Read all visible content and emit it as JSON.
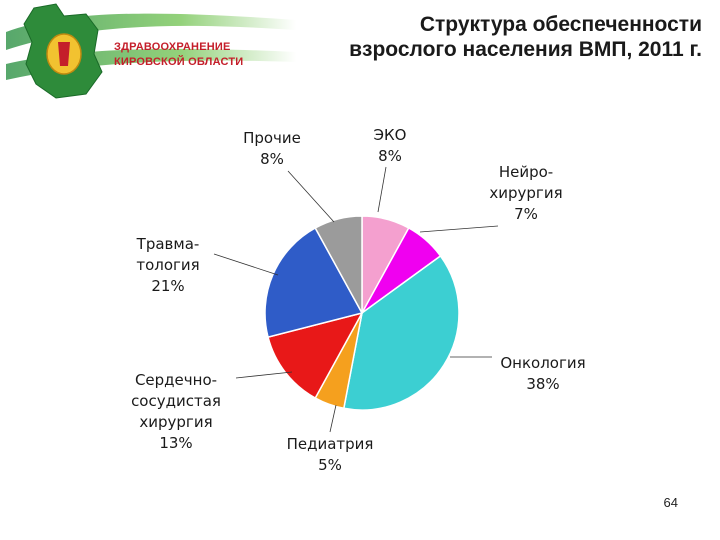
{
  "header": {
    "title_line1": "Структура обеспеченности",
    "title_line2": "взрослого населения ВМП, 2011 г.",
    "logo_line1": "ЗДРАВООХРАНЕНИЕ",
    "logo_line2": "КИРОВСКОЙ ОБЛАСТИ"
  },
  "page_number": "64",
  "chart_data": {
    "type": "pie",
    "title": "",
    "slices": [
      {
        "name": "ЭКО",
        "value": 8,
        "label": "8%",
        "color": "#f4a0cf"
      },
      {
        "name": "Нейро-хирургия",
        "value": 7,
        "label": "7%",
        "color": "#f000f0"
      },
      {
        "name": "Онкология",
        "value": 38,
        "label": "38%",
        "color": "#3ccfd2"
      },
      {
        "name": "Педиатрия",
        "value": 5,
        "label": "5%",
        "color": "#f5a01e"
      },
      {
        "name": "Сердечно-сосудистая хирургия",
        "value": 13,
        "label": "13%",
        "color": "#e81818"
      },
      {
        "name": "Травма-тология",
        "value": 21,
        "label": "21%",
        "color": "#2f5cc8"
      },
      {
        "name": "Прочие",
        "value": 8,
        "label": "8%",
        "color": "#9b9b9b"
      }
    ],
    "label_lines": [
      [
        "ЭКО",
        "8%"
      ],
      [
        "Нейро-",
        "хирургия",
        "7%"
      ],
      [
        "Онкология",
        "38%"
      ],
      [
        "Педиатрия",
        "5%"
      ],
      [
        "Сердечно-",
        "сосудистая",
        "хирургия",
        "13%"
      ],
      [
        "Травма-",
        "тология",
        "21%"
      ],
      [
        "Прочие",
        "8%"
      ]
    ]
  }
}
